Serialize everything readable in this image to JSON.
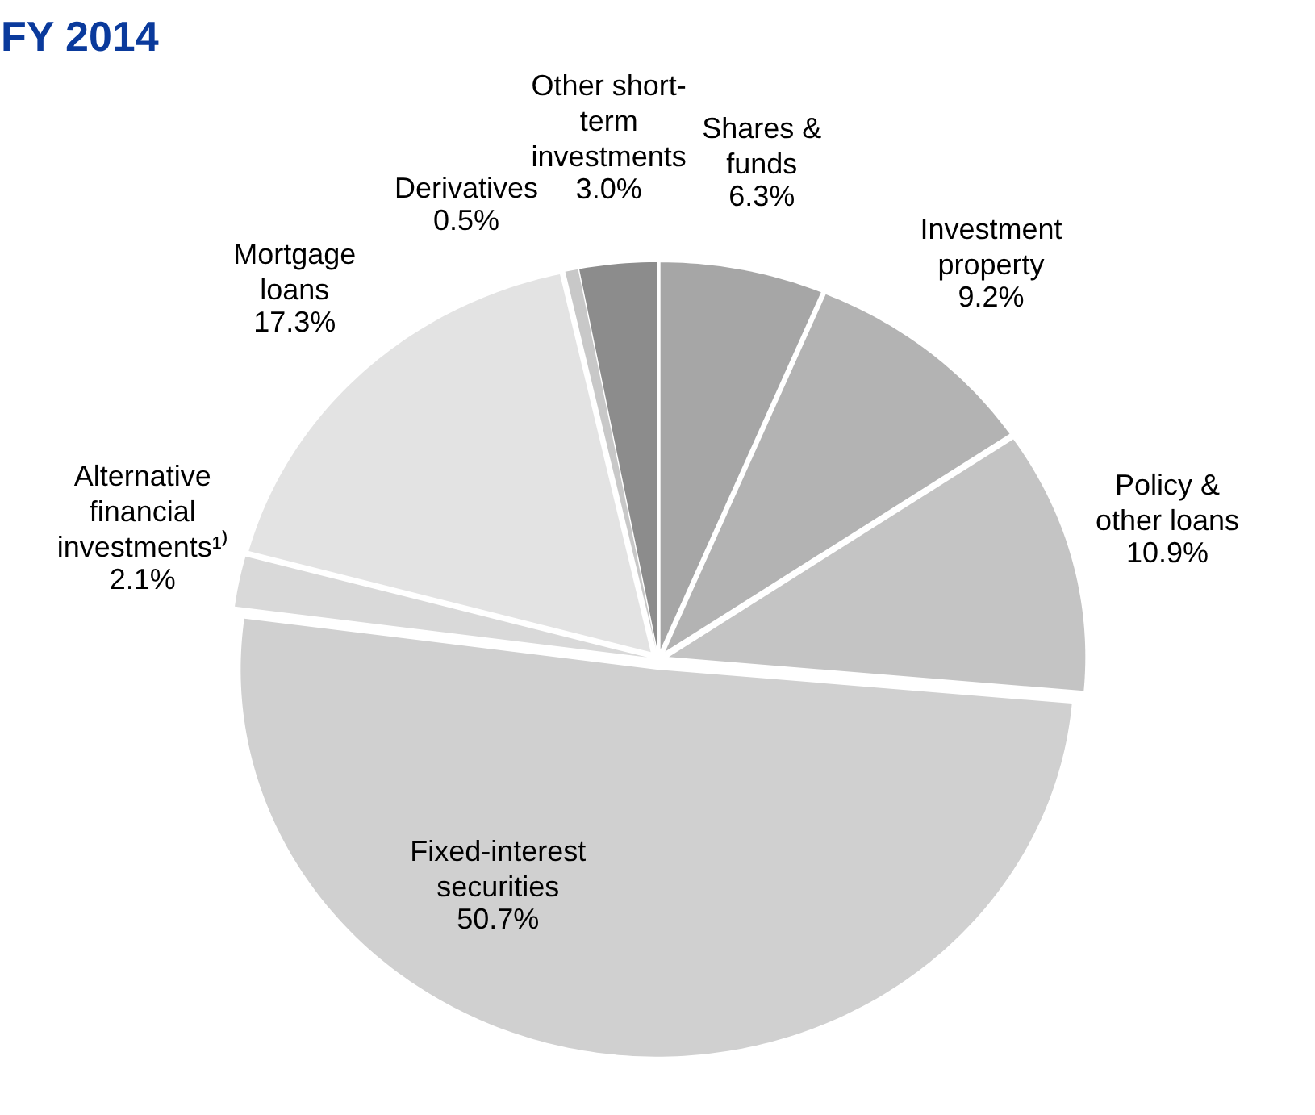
{
  "chart_data": {
    "type": "pie",
    "title": "FY 2014",
    "categories": [
      "Shares &\nfunds",
      "Investment\nproperty",
      "Policy &\nother loans",
      "Fixed-interest\nsecurities",
      "Alternative\nfinancial\ninvestments¹⁾",
      "Mortgage\nloans",
      "Derivatives",
      "Other short-\nterm\ninvestments"
    ],
    "values": [
      6.3,
      9.2,
      10.9,
      50.7,
      2.1,
      17.3,
      0.5,
      3.0
    ],
    "colors": [
      "#a6a6a6",
      "#b3b3b3",
      "#c4c4c4",
      "#d0d0d0",
      "#d9d9d9",
      "#e3e3e3",
      "#c8c8c8",
      "#8c8c8c"
    ],
    "value_labels": [
      "6.3%",
      "9.2%",
      "10.9%",
      "50.7%",
      "2.1%",
      "17.3%",
      "0.5%",
      "3.0%"
    ]
  }
}
